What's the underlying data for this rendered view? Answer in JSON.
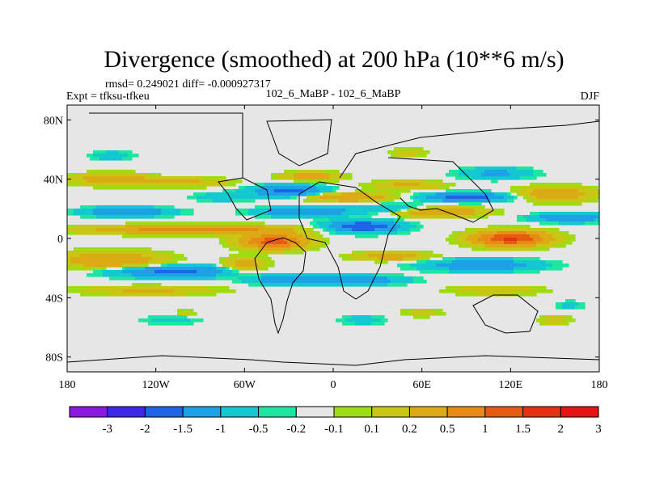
{
  "chart_data": {
    "type": "heatmap",
    "title": "Divergence (smoothed) at 200 hPa (10**6 m/s)",
    "stats_line": "rmsd= 0.249021 diff= -0.000927317",
    "experiment": "Expt = tfksu-tfkeu",
    "comparison": "102_6_MaBP - 102_6_MaBP",
    "season": "DJF",
    "x_ticks": [
      {
        "value": -180,
        "label": "180"
      },
      {
        "value": -120,
        "label": "120W"
      },
      {
        "value": -60,
        "label": "60W"
      },
      {
        "value": 0,
        "label": "0"
      },
      {
        "value": 60,
        "label": "60E"
      },
      {
        "value": 120,
        "label": "120E"
      },
      {
        "value": 180,
        "label": "180"
      }
    ],
    "y_ticks": [
      {
        "value": 80,
        "label": "80N"
      },
      {
        "value": 40,
        "label": "40N"
      },
      {
        "value": 0,
        "label": "0"
      },
      {
        "value": -40,
        "label": "40S"
      },
      {
        "value": -80,
        "label": "80S"
      }
    ],
    "xlim": [
      -180,
      180
    ],
    "ylim": [
      -90,
      90
    ],
    "colorbar": {
      "labels": [
        "-3",
        "-2",
        "-1.5",
        "-1",
        "-0.5",
        "-0.2",
        "-0.1",
        "0.1",
        "0.2",
        "0.5",
        "1",
        "1.5",
        "2",
        "3"
      ],
      "colors": [
        "#8a1ae0",
        "#3c28e6",
        "#1e64e6",
        "#1ea0e6",
        "#14c8d2",
        "#1ee6a0",
        "#e6e6e6",
        "#a0dc14",
        "#c8c814",
        "#dcaa14",
        "#e68c14",
        "#e65a14",
        "#e63214",
        "#e61414"
      ]
    },
    "features": [
      {
        "lon": -95,
        "lat": 6,
        "sx": 65,
        "sy": 3,
        "value": 1.4
      },
      {
        "lon": -140,
        "lat": 18,
        "sx": 30,
        "sy": 3,
        "value": -1.0
      },
      {
        "lon": -150,
        "lat": -15,
        "sx": 35,
        "sy": 6,
        "value": 1.0
      },
      {
        "lon": -110,
        "lat": -22,
        "sx": 45,
        "sy": 4,
        "value": -1.2
      },
      {
        "lon": -125,
        "lat": -35,
        "sx": 45,
        "sy": 3,
        "value": 0.6
      },
      {
        "lon": -150,
        "lat": 40,
        "sx": 25,
        "sy": 4,
        "value": 0.9
      },
      {
        "lon": -100,
        "lat": 38,
        "sx": 30,
        "sy": 3,
        "value": 0.6
      },
      {
        "lon": -75,
        "lat": 28,
        "sx": 20,
        "sy": 3,
        "value": -0.4
      },
      {
        "lon": -150,
        "lat": 56,
        "sx": 15,
        "sy": 3,
        "value": -0.4
      },
      {
        "lon": -30,
        "lat": 32,
        "sx": 25,
        "sy": 4,
        "value": -1.2
      },
      {
        "lon": -15,
        "lat": 42,
        "sx": 20,
        "sy": 3,
        "value": 0.8
      },
      {
        "lon": -40,
        "lat": -2,
        "sx": 22,
        "sy": 5,
        "value": 1.8
      },
      {
        "lon": -20,
        "lat": 18,
        "sx": 30,
        "sy": 3,
        "value": -1.1
      },
      {
        "lon": 20,
        "lat": 8,
        "sx": 25,
        "sy": 4,
        "value": -1.5
      },
      {
        "lon": 10,
        "lat": 28,
        "sx": 30,
        "sy": 3,
        "value": 1.0
      },
      {
        "lon": 40,
        "lat": 20,
        "sx": 25,
        "sy": 3,
        "value": -0.7
      },
      {
        "lon": 50,
        "lat": 36,
        "sx": 25,
        "sy": 3,
        "value": 0.6
      },
      {
        "lon": 70,
        "lat": 18,
        "sx": 30,
        "sy": 3,
        "value": 1.2
      },
      {
        "lon": 120,
        "lat": 0,
        "sx": 25,
        "sy": 5,
        "value": 2.1
      },
      {
        "lon": 90,
        "lat": 28,
        "sx": 30,
        "sy": 3,
        "value": -1.3
      },
      {
        "lon": 150,
        "lat": 30,
        "sx": 25,
        "sy": 5,
        "value": 0.9
      },
      {
        "lon": 110,
        "lat": 44,
        "sx": 25,
        "sy": 4,
        "value": -0.6
      },
      {
        "lon": 160,
        "lat": 14,
        "sx": 25,
        "sy": 3,
        "value": -1.0
      },
      {
        "lon": 100,
        "lat": -18,
        "sx": 40,
        "sy": 4,
        "value": -0.9
      },
      {
        "lon": 40,
        "lat": -12,
        "sx": 25,
        "sy": 3,
        "value": 0.8
      },
      {
        "lon": 20,
        "lat": -28,
        "sx": 30,
        "sy": 3,
        "value": -0.8
      },
      {
        "lon": -30,
        "lat": -28,
        "sx": 25,
        "sy": 3,
        "value": -1.0
      },
      {
        "lon": -60,
        "lat": -18,
        "sx": 15,
        "sy": 5,
        "value": 0.8
      },
      {
        "lon": 110,
        "lat": -35,
        "sx": 30,
        "sy": 3,
        "value": 0.5
      },
      {
        "lon": -100,
        "lat": -50,
        "sx": 8,
        "sy": 2,
        "value": 0.3
      },
      {
        "lon": 60,
        "lat": -50,
        "sx": 15,
        "sy": 3,
        "value": 0.3
      },
      {
        "lon": 160,
        "lat": -45,
        "sx": 10,
        "sy": 3,
        "value": -0.3
      },
      {
        "lon": -110,
        "lat": -55,
        "sx": 20,
        "sy": 3,
        "value": -0.3
      },
      {
        "lon": 150,
        "lat": -55,
        "sx": 10,
        "sy": 3,
        "value": 0.5
      },
      {
        "lon": 20,
        "lat": -55,
        "sx": 15,
        "sy": 3,
        "value": -0.4
      },
      {
        "lon": 50,
        "lat": 58,
        "sx": 12,
        "sy": 3,
        "value": 0.4
      }
    ]
  }
}
